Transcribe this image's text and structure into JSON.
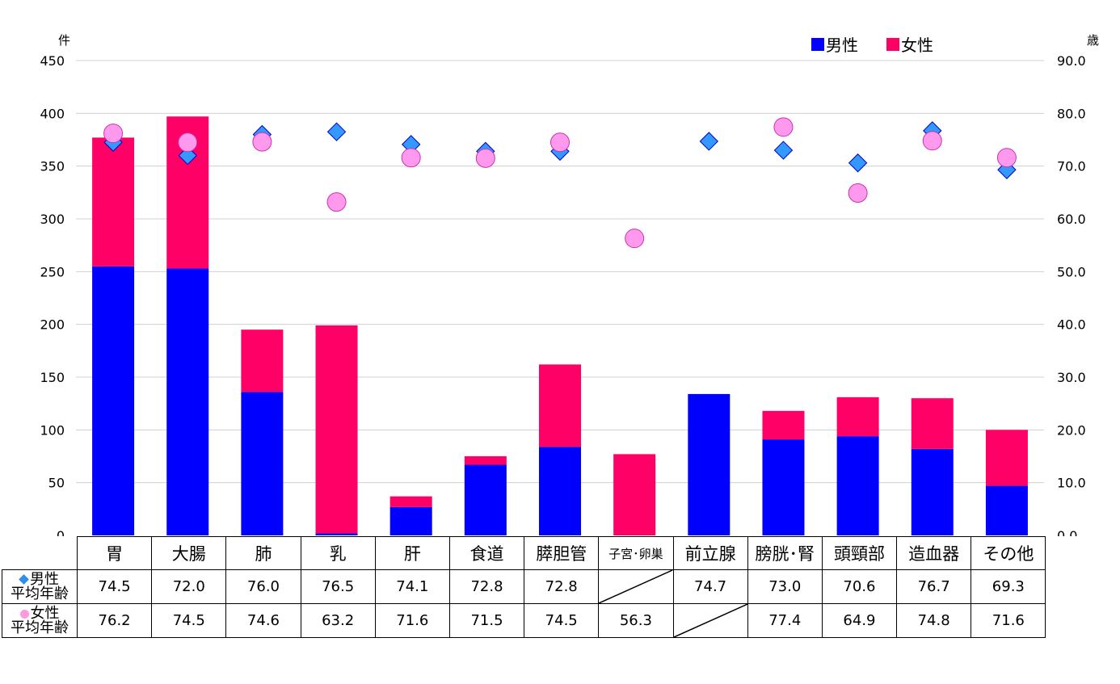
{
  "chart_data": {
    "type": "bar",
    "stacked": true,
    "categories": [
      "胃",
      "大腸",
      "肺",
      "乳",
      "肝",
      "食道",
      "膵胆管",
      "子宮･卵巣",
      "前立腺",
      "膀胱･腎",
      "頭頸部",
      "造血器",
      "その他"
    ],
    "series": [
      {
        "name": "男性",
        "values": [
          255,
          253,
          136,
          2,
          27,
          67,
          84,
          0,
          134,
          91,
          94,
          82,
          47
        ],
        "color": "#0000ff"
      },
      {
        "name": "女性",
        "values": [
          122,
          144,
          59,
          197,
          10,
          8,
          78,
          77,
          0,
          27,
          37,
          48,
          53
        ],
        "color": "#ff0066"
      }
    ],
    "age_series": [
      {
        "label": "男性平均年齢",
        "marker": "diamond",
        "color": "#3399ff",
        "values": [
          74.5,
          72.0,
          76.0,
          76.5,
          74.1,
          72.8,
          72.8,
          null,
          74.7,
          73.0,
          70.6,
          76.7,
          69.3
        ]
      },
      {
        "label": "女性平均年齢",
        "marker": "circle",
        "color": "#ff99ee",
        "values": [
          76.2,
          74.5,
          74.6,
          63.2,
          71.6,
          71.5,
          74.5,
          56.3,
          null,
          77.4,
          64.9,
          74.8,
          71.6
        ]
      }
    ],
    "left_axis": {
      "unit": "件",
      "ylim": [
        0,
        450
      ],
      "ticks": [
        "0",
        "50",
        "100",
        "150",
        "200",
        "250",
        "300",
        "350",
        "400",
        "450"
      ]
    },
    "right_axis": {
      "unit": "歳",
      "ylim": [
        0,
        90
      ],
      "ticks": [
        "0.0",
        "10.0",
        "20.0",
        "30.0",
        "40.0",
        "50.0",
        "60.0",
        "70.0",
        "80.0",
        "90.0"
      ]
    },
    "legend": {
      "placement": "top-right",
      "items": [
        "男性",
        "女性"
      ]
    },
    "grid": true
  },
  "table": {
    "male_label_line1": "男性",
    "male_label_line2": "平均年齢",
    "female_label_line1": "女性",
    "female_label_line2": "平均年齢",
    "male_values": [
      "74.5",
      "72.0",
      "76.0",
      "76.5",
      "74.1",
      "72.8",
      "72.8",
      "",
      "74.7",
      "73.0",
      "70.6",
      "76.7",
      "69.3"
    ],
    "female_values": [
      "76.2",
      "74.5",
      "74.6",
      "63.2",
      "71.6",
      "71.5",
      "74.5",
      "56.3",
      "",
      "77.4",
      "64.9",
      "74.8",
      "71.6"
    ]
  }
}
